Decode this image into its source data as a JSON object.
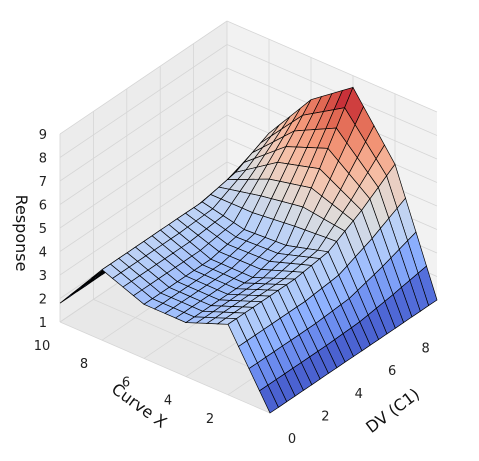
{
  "chart_data": {
    "type": "surface3d",
    "title": "",
    "xlabel": "DV (C1)",
    "ylabel": "Curve X",
    "zlabel": "Response",
    "xlim": [
      0,
      10
    ],
    "ylim": [
      0,
      10
    ],
    "zlim": [
      1,
      9
    ],
    "xticks": [
      "0",
      "2",
      "4",
      "6",
      "8"
    ],
    "yticks": [
      "2",
      "4",
      "6",
      "8",
      "10"
    ],
    "zticks": [
      "1",
      "2",
      "3",
      "4",
      "5",
      "6",
      "7",
      "8",
      "9"
    ],
    "grid": true,
    "colormap": "coolwarm",
    "z_grid_sampled": {
      "x": [
        0,
        2,
        4,
        6,
        8,
        10
      ],
      "y": [
        0,
        2,
        4,
        6,
        8,
        10
      ],
      "z": [
        [
          1.0,
          1.0,
          1.0,
          1.0,
          1.0,
          1.0
        ],
        [
          4.0,
          4.0,
          4.0,
          4.2,
          5.0,
          6.0
        ],
        [
          3.3,
          3.3,
          3.3,
          3.7,
          6.0,
          8.5
        ],
        [
          3.3,
          3.3,
          3.3,
          3.6,
          5.5,
          7.2
        ],
        [
          4.0,
          4.0,
          4.0,
          4.0,
          4.3,
          5.0
        ],
        [
          1.8,
          1.8,
          1.8,
          1.8,
          1.8,
          2.0
        ]
      ]
    }
  },
  "colors": {
    "pane_left": "#ececec",
    "pane_right": "#f2f2f2",
    "pane_floor": "#e8e8e8",
    "grid": "#d6d6d6",
    "mesh_edge": "#000000"
  }
}
